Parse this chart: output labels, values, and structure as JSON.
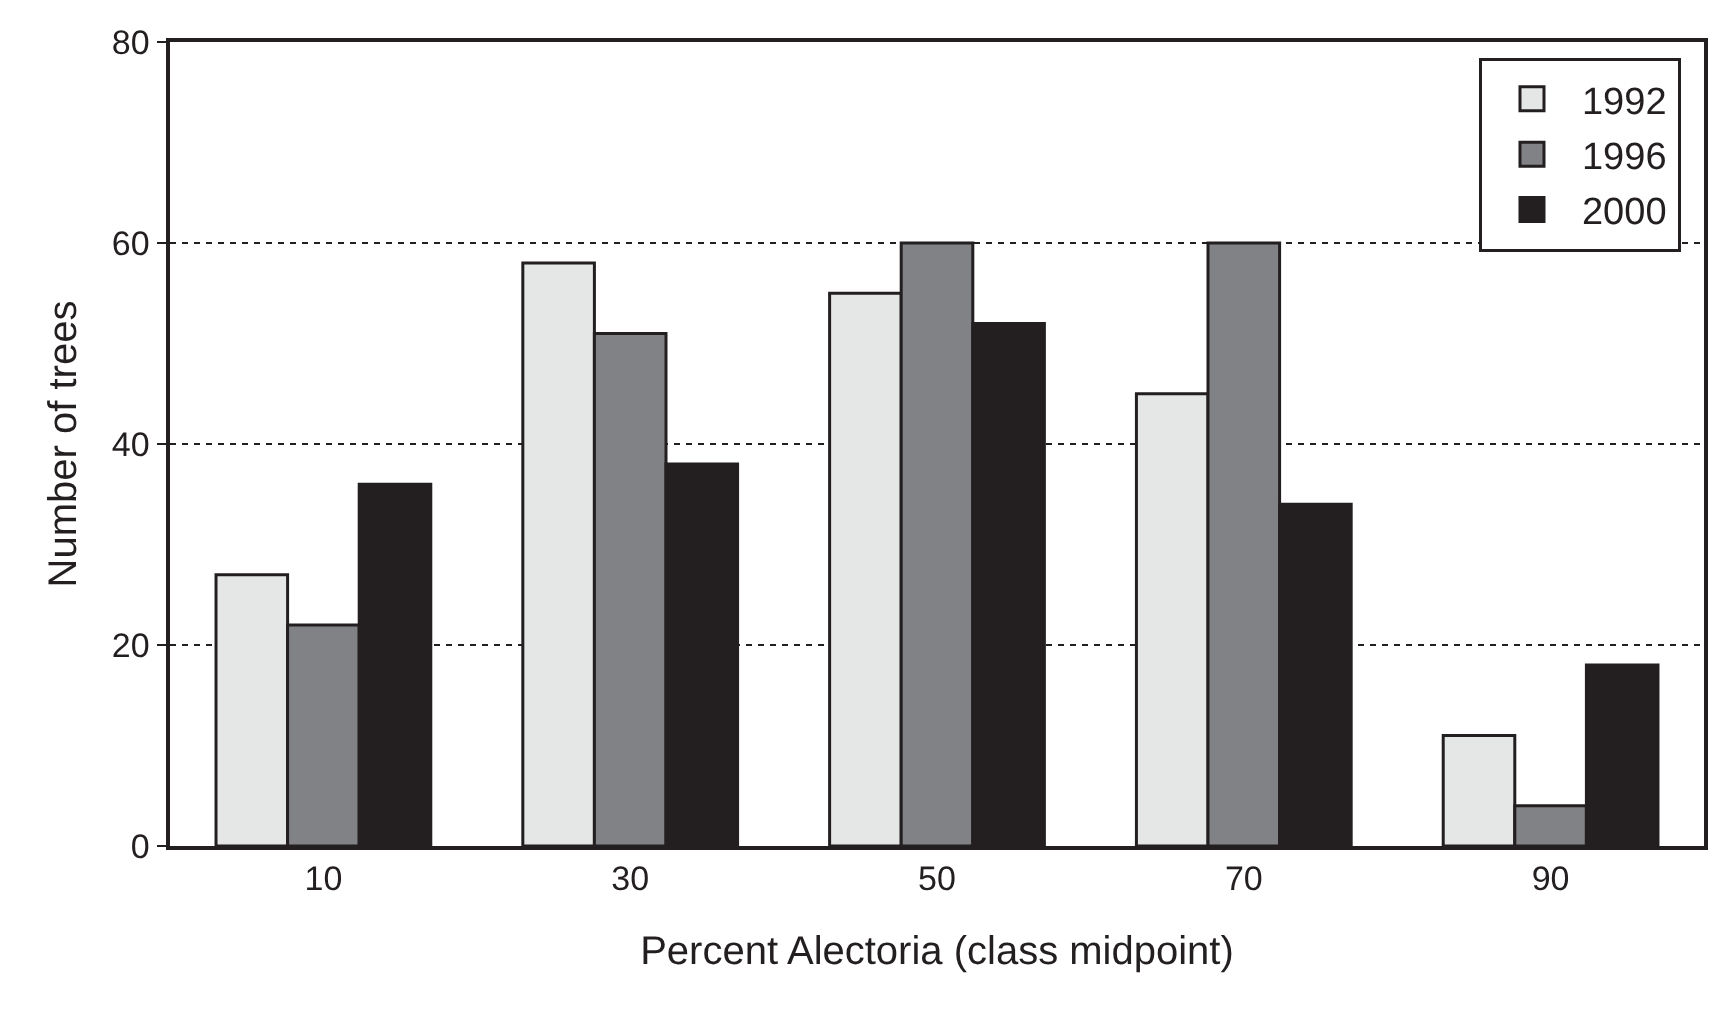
{
  "chart_data": {
    "type": "bar",
    "xlabel": "Percent Alectoria (class midpoint)",
    "ylabel": "Number of trees",
    "categories": [
      "10",
      "30",
      "50",
      "70",
      "90"
    ],
    "series": [
      {
        "name": "1992",
        "color": "#e5e7e6",
        "values": [
          27,
          58,
          55,
          45,
          11
        ]
      },
      {
        "name": "1996",
        "color": "#818285",
        "values": [
          22,
          51,
          60,
          60,
          4
        ]
      },
      {
        "name": "2000",
        "color": "#231f20",
        "values": [
          36,
          38,
          52,
          34,
          18
        ]
      }
    ],
    "ylim": [
      0,
      80
    ],
    "yticks": [
      0,
      20,
      40,
      60,
      80
    ],
    "grid": "y",
    "legend": "top right"
  }
}
